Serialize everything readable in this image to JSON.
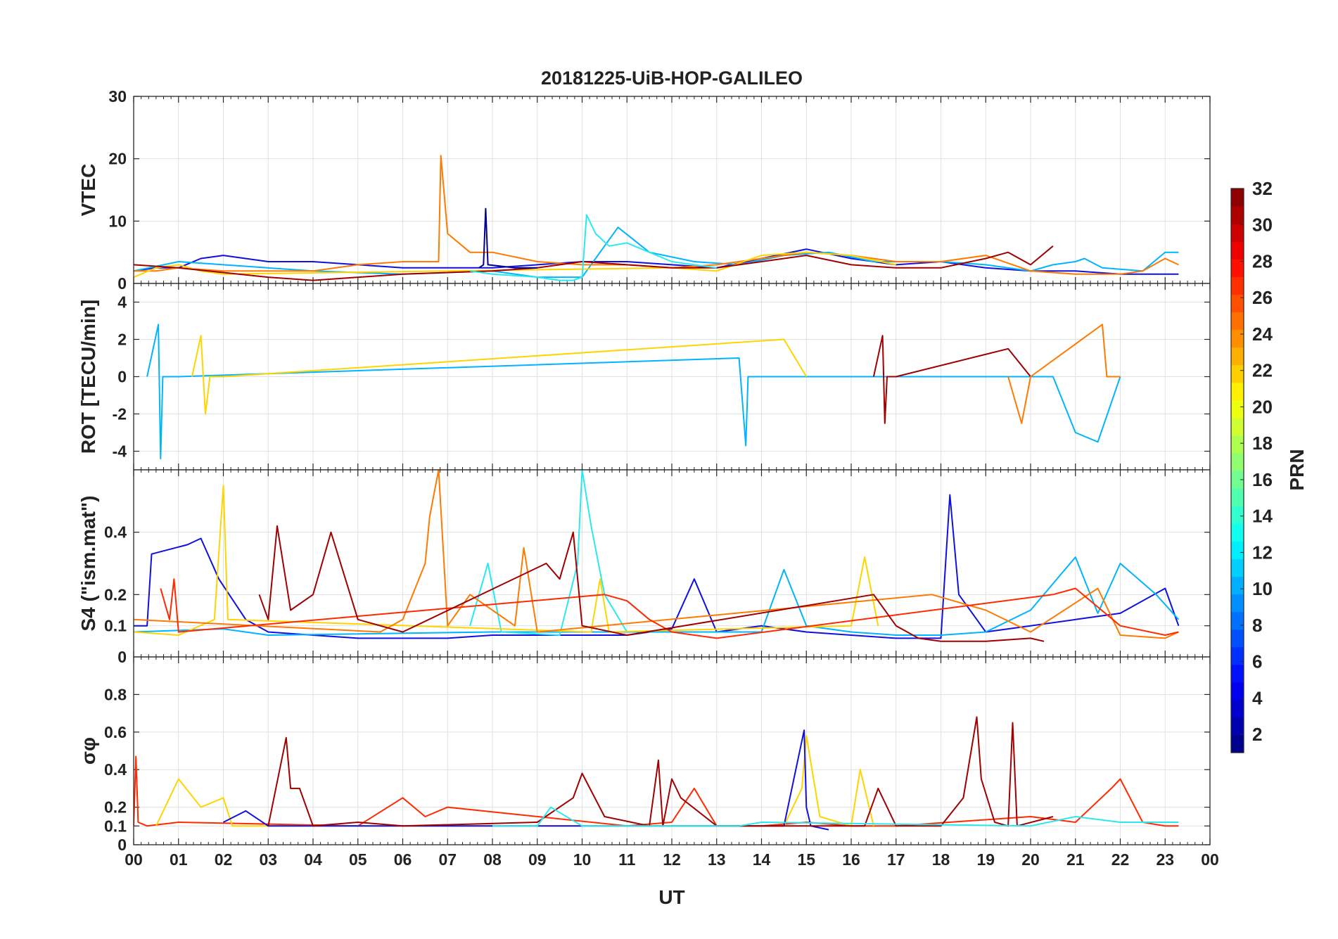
{
  "chart_data": {
    "type": "line",
    "title": "20181225-UiB-HOP-GALILEO",
    "xlabel": "UT",
    "x_ticks": [
      "00",
      "01",
      "02",
      "03",
      "04",
      "05",
      "06",
      "07",
      "08",
      "09",
      "10",
      "11",
      "12",
      "13",
      "14",
      "15",
      "16",
      "17",
      "18",
      "19",
      "20",
      "21",
      "22",
      "23",
      "00"
    ],
    "xlim": [
      0,
      24
    ],
    "grid": true,
    "colorbar": {
      "label": "PRN",
      "range": [
        1,
        32
      ],
      "ticks": [
        "2",
        "4",
        "6",
        "8",
        "10",
        "12",
        "14",
        "16",
        "18",
        "20",
        "22",
        "24",
        "26",
        "28",
        "30",
        "32"
      ],
      "colormap": "jet"
    },
    "panels": [
      {
        "ylabel": "VTEC",
        "ylim": [
          0,
          30
        ],
        "yticks": [
          "0",
          "10",
          "20",
          "30"
        ],
        "series": [
          {
            "name": "PRN 4",
            "color": "#1010e0",
            "x": [
              0.0,
              0.5,
              1.0,
              1.5,
              2.0,
              3.0,
              4.0,
              5.0,
              6.0,
              7.0,
              8.0,
              9.0,
              10.0,
              11.0,
              12.0,
              13.0,
              14.0,
              15.0,
              16.0,
              17.0,
              18.0,
              19.0,
              20.0,
              21.0,
              22.0,
              23.0,
              23.3
            ],
            "values": [
              2,
              2.5,
              2.5,
              4,
              4.5,
              3.5,
              3.5,
              3,
              2.5,
              2.5,
              2.5,
              3,
              3.5,
              3.5,
              3,
              2.5,
              4,
              5.5,
              4,
              3,
              3.5,
              2.5,
              2,
              2,
              1.5,
              1.5,
              1.5
            ]
          },
          {
            "name": "PRN 11",
            "color": "#00b4ff",
            "x": [
              0.0,
              1.0,
              2.0,
              4.0,
              6.0,
              8.0,
              9.0,
              10.0,
              10.8,
              11.5,
              12.5,
              13.5,
              14.5,
              15.5,
              16.5,
              18.0,
              19.0,
              20.0,
              20.5,
              21.0,
              21.2,
              21.6,
              22.5,
              23.0,
              23.3
            ],
            "values": [
              2,
              3.5,
              3,
              2,
              1.5,
              2,
              1,
              1,
              9,
              5,
              3.5,
              3,
              4.5,
              5,
              3.5,
              3.5,
              3,
              2,
              3,
              3.5,
              4,
              2.5,
              2,
              5,
              5
            ]
          },
          {
            "name": "PRN 23",
            "color": "#ff7a00",
            "x": [
              0.0,
              0.5,
              1.0,
              2.0,
              3.0,
              4.0,
              5.0,
              6.0,
              6.8,
              6.85,
              7.0,
              7.5,
              8.0,
              9.0,
              10.0,
              11.0,
              12.0,
              13.0,
              14.0,
              15.0,
              16.0,
              17.0,
              18.0,
              19.0,
              20.0,
              21.0,
              22.0,
              22.5,
              23.0,
              23.3
            ],
            "values": [
              2,
              2,
              2.5,
              2,
              2,
              2,
              3,
              3.5,
              3.5,
              20.5,
              8,
              5,
              5,
              3.5,
              3,
              3,
              2.5,
              3,
              4,
              5,
              4.5,
              3.5,
              3.5,
              4.5,
              2,
              1.5,
              1.5,
              2,
              4,
              3
            ]
          },
          {
            "name": "PRN 20",
            "color": "#ffd400",
            "x": [
              0.0,
              0.5,
              1.0,
              1.5,
              2.0,
              12.0,
              13.0,
              14.0,
              15.0,
              16.0,
              17.0
            ],
            "values": [
              1,
              2.5,
              3,
              2,
              1.5,
              2.5,
              2,
              4.5,
              5,
              4.5,
              3
            ]
          },
          {
            "name": "PRN 30",
            "color": "#a00000",
            "x": [
              0.0,
              1.0,
              3.0,
              4.0,
              6.0,
              8.0,
              9.0,
              10.0,
              11.0,
              12.0,
              13.0,
              14.0,
              15.0,
              16.0,
              17.0,
              18.0,
              19.0,
              19.5,
              20.0,
              20.5
            ],
            "values": [
              3,
              2.5,
              1,
              0.5,
              1.5,
              2,
              2.5,
              3.5,
              3,
              2.5,
              2.5,
              3.5,
              4.5,
              3,
              2.5,
              2.5,
              4,
              5,
              3,
              6
            ]
          },
          {
            "name": "PRN 13",
            "color": "#2ae8f0",
            "x": [
              7.5,
              8.0,
              9.0,
              9.5,
              9.8,
              10.0,
              10.1,
              10.3,
              10.6,
              11.0,
              12.0,
              13.0
            ],
            "values": [
              2,
              1.5,
              1,
              0.5,
              0.5,
              1,
              11,
              8,
              6,
              6.5,
              3.5,
              2.5
            ]
          },
          {
            "name": "PRN 2",
            "color": "#00008c",
            "x": [
              7.7,
              7.8,
              7.85,
              7.9,
              8.5,
              9.0
            ],
            "values": [
              2.5,
              3,
              12,
              3,
              2.5,
              2.5
            ]
          }
        ]
      },
      {
        "ylabel": "ROT [TECU/min]",
        "ylim": [
          -5,
          5
        ],
        "yticks": [
          "-4",
          "-2",
          "0",
          "2",
          "4"
        ],
        "series": [
          {
            "name": "PRN 11",
            "color": "#00b4ff",
            "x": [
              0.3,
              0.55,
              0.6,
              0.65,
              1.0,
              13.5,
              13.65,
              13.7,
              14.5,
              20.5,
              21.0,
              21.5,
              22.0
            ],
            "values": [
              0,
              2.8,
              -4.4,
              0,
              0,
              1,
              -3.7,
              0,
              0,
              0,
              -3,
              -3.5,
              0
            ]
          },
          {
            "name": "PRN 20",
            "color": "#ffd400",
            "x": [
              1.3,
              1.5,
              1.6,
              1.7,
              2.0,
              14.5,
              15.0
            ],
            "values": [
              0,
              2.2,
              -2,
              0,
              0,
              2,
              0
            ]
          },
          {
            "name": "PRN 30",
            "color": "#a00000",
            "x": [
              16.5,
              16.7,
              16.75,
              16.8,
              17.0,
              19.5,
              20.0
            ],
            "values": [
              0,
              2.2,
              -2.5,
              0,
              0,
              1.5,
              0
            ]
          },
          {
            "name": "PRN 23",
            "color": "#ff7a00",
            "x": [
              19.5,
              19.8,
              20.0,
              21.6,
              21.7,
              22.0
            ],
            "values": [
              0,
              -2.5,
              0,
              2.8,
              0,
              0
            ]
          }
        ]
      },
      {
        "ylabel": "S4 (\"ism.mat\")",
        "ylim": [
          0,
          0.6
        ],
        "yticks": [
          "0",
          "0.1",
          "0.2",
          "0.4"
        ],
        "series": [
          {
            "name": "PRN 4",
            "color": "#1010e0",
            "x": [
              0.0,
              0.3,
              0.4,
              1.2,
              1.5,
              1.9,
              2.5,
              3.0,
              4.0,
              5.0,
              6.0,
              7.0,
              8.0,
              9.0,
              10.0,
              11.0,
              12.0,
              12.5,
              13.0,
              14.0,
              15.0,
              16.0,
              17.0,
              18.0,
              18.2,
              18.4,
              19.0,
              20.0,
              21.0,
              22.0,
              23.0,
              23.3
            ],
            "values": [
              0.1,
              0.1,
              0.33,
              0.36,
              0.38,
              0.25,
              0.12,
              0.08,
              0.07,
              0.06,
              0.06,
              0.06,
              0.07,
              0.07,
              0.07,
              0.07,
              0.09,
              0.25,
              0.08,
              0.1,
              0.08,
              0.07,
              0.06,
              0.06,
              0.52,
              0.2,
              0.08,
              0.1,
              0.12,
              0.14,
              0.22,
              0.1
            ]
          },
          {
            "name": "PRN 11",
            "color": "#00b4ff",
            "x": [
              0.0,
              2.0,
              3.0,
              8.0,
              14.0,
              14.5,
              15.0,
              16.0,
              17.0,
              18.0,
              19.0,
              20.0,
              21.0,
              21.5,
              22.0,
              22.8,
              23.3
            ],
            "values": [
              0.08,
              0.09,
              0.07,
              0.08,
              0.08,
              0.28,
              0.1,
              0.08,
              0.07,
              0.07,
              0.08,
              0.15,
              0.32,
              0.14,
              0.3,
              0.2,
              0.12
            ]
          },
          {
            "name": "PRN 13",
            "color": "#2ae8f0",
            "x": [
              7.5,
              7.9,
              8.2,
              9.5,
              9.9,
              10.0,
              10.2,
              10.5,
              11.0
            ],
            "values": [
              0.1,
              0.3,
              0.08,
              0.07,
              0.3,
              0.6,
              0.42,
              0.2,
              0.08
            ]
          },
          {
            "name": "PRN 20",
            "color": "#ffd400",
            "x": [
              0.0,
              1.0,
              1.8,
              2.0,
              2.1,
              10.2,
              10.4,
              10.6,
              16.0,
              16.3,
              16.6
            ],
            "values": [
              0.08,
              0.07,
              0.12,
              0.55,
              0.12,
              0.08,
              0.25,
              0.08,
              0.1,
              0.32,
              0.1
            ]
          },
          {
            "name": "PRN 23",
            "color": "#ff7a00",
            "x": [
              0.0,
              5.5,
              6.0,
              6.5,
              6.6,
              6.8,
              7.0,
              7.5,
              8.0,
              8.5,
              8.7,
              9.0,
              17.8,
              19.0,
              20.0,
              21.5,
              22.0,
              23.0,
              23.3
            ],
            "values": [
              0.12,
              0.08,
              0.12,
              0.3,
              0.45,
              0.6,
              0.1,
              0.2,
              0.15,
              0.1,
              0.35,
              0.08,
              0.2,
              0.15,
              0.08,
              0.22,
              0.07,
              0.06,
              0.08
            ]
          },
          {
            "name": "PRN 27",
            "color": "#ff2a00",
            "x": [
              0.6,
              0.8,
              0.9,
              1.0,
              10.5,
              11.0,
              11.5,
              12.0,
              13.0,
              20.5,
              21.0,
              22.0,
              23.0,
              23.3
            ],
            "values": [
              0.22,
              0.12,
              0.25,
              0.08,
              0.2,
              0.18,
              0.12,
              0.08,
              0.06,
              0.2,
              0.22,
              0.1,
              0.07,
              0.08
            ]
          },
          {
            "name": "PRN 30",
            "color": "#a00000",
            "x": [
              2.8,
              3.0,
              3.2,
              3.5,
              4.0,
              4.4,
              5.0,
              6.0,
              9.2,
              9.5,
              9.8,
              10.0,
              11.0,
              16.5,
              17.0,
              17.5,
              18.0,
              18.5,
              19.0,
              20.0,
              20.3
            ],
            "values": [
              0.2,
              0.12,
              0.42,
              0.15,
              0.2,
              0.4,
              0.12,
              0.08,
              0.3,
              0.25,
              0.4,
              0.1,
              0.07,
              0.2,
              0.1,
              0.06,
              0.05,
              0.05,
              0.05,
              0.06,
              0.05
            ]
          }
        ]
      },
      {
        "ylabel": "σφ",
        "ylim": [
          0,
          1
        ],
        "yticks": [
          "0",
          "0.1",
          "0.2",
          "0.4",
          "0.6",
          "0.8"
        ],
        "series": [
          {
            "name": "PRN 27",
            "color": "#ff2a00",
            "x": [
              0.0,
              0.05,
              0.1,
              0.3,
              1.0,
              5.0,
              6.0,
              6.5,
              7.0,
              11.0,
              12.0,
              12.5,
              13.0,
              14.0,
              15.0,
              16.0,
              17.0,
              20.0,
              21.0,
              21.8,
              22.0,
              22.5,
              23.0,
              23.3
            ],
            "values": [
              0.1,
              0.47,
              0.12,
              0.1,
              0.12,
              0.1,
              0.25,
              0.15,
              0.2,
              0.1,
              0.12,
              0.3,
              0.1,
              0.1,
              0.12,
              0.1,
              0.1,
              0.15,
              0.12,
              0.3,
              0.35,
              0.12,
              0.1,
              0.1
            ]
          },
          {
            "name": "PRN 20",
            "color": "#ffd400",
            "x": [
              0.5,
              1.0,
              1.5,
              2.0,
              2.2,
              14.5,
              14.9,
              15.0,
              15.3,
              16.0,
              16.2,
              16.5
            ],
            "values": [
              0.1,
              0.35,
              0.2,
              0.25,
              0.1,
              0.1,
              0.3,
              0.58,
              0.15,
              0.1,
              0.4,
              0.1
            ]
          },
          {
            "name": "PRN 4",
            "color": "#1010e0",
            "x": [
              2.0,
              2.5,
              3.0,
              14.5,
              14.95,
              15.0,
              15.1,
              15.5
            ],
            "values": [
              0.12,
              0.18,
              0.1,
              0.1,
              0.61,
              0.2,
              0.1,
              0.08
            ]
          },
          {
            "name": "PRN 30",
            "color": "#a00000",
            "x": [
              3.0,
              3.4,
              3.5,
              3.7,
              4.0,
              5.0,
              6.0,
              9.0,
              9.8,
              10.0,
              10.5,
              11.5,
              11.7,
              11.8,
              12.0,
              12.2,
              13.0,
              16.3,
              16.6,
              17.0,
              18.0,
              18.5,
              18.8,
              18.9,
              19.2,
              19.5,
              19.6,
              19.7,
              20.5
            ],
            "values": [
              0.1,
              0.57,
              0.3,
              0.3,
              0.1,
              0.12,
              0.1,
              0.12,
              0.25,
              0.38,
              0.15,
              0.1,
              0.45,
              0.1,
              0.35,
              0.25,
              0.1,
              0.1,
              0.3,
              0.1,
              0.1,
              0.25,
              0.68,
              0.35,
              0.12,
              0.1,
              0.65,
              0.1,
              0.15
            ]
          },
          {
            "name": "PRN 13",
            "color": "#2ae8f0",
            "x": [
              8.0,
              9.0,
              9.3,
              10.0,
              13.5,
              14.0,
              20.0,
              21.0,
              22.0,
              23.0,
              23.3
            ],
            "values": [
              0.1,
              0.1,
              0.2,
              0.1,
              0.1,
              0.12,
              0.1,
              0.15,
              0.12,
              0.12,
              0.12
            ]
          }
        ]
      }
    ]
  }
}
